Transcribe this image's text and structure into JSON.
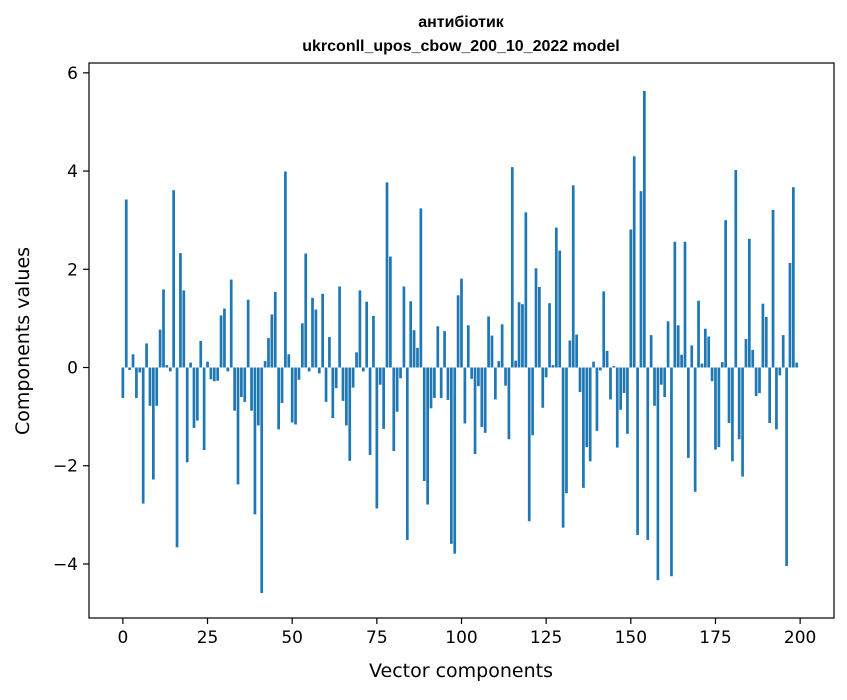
{
  "chart_data": {
    "type": "bar",
    "title": "антибіотик",
    "subtitle": "ukrconll_upos_cbow_200_10_2022 model",
    "xlabel": "Vector components",
    "ylabel": "Components values",
    "xlim": [
      -10,
      210
    ],
    "ylim": [
      -5.1,
      6.2
    ],
    "x_ticks": [
      0,
      25,
      50,
      75,
      100,
      125,
      150,
      175,
      200
    ],
    "x_tick_labels": [
      "0",
      "25",
      "50",
      "75",
      "100",
      "125",
      "150",
      "175",
      "200"
    ],
    "y_ticks": [
      -4,
      -2,
      0,
      2,
      4,
      6
    ],
    "y_tick_labels": [
      "−4",
      "−2",
      "0",
      "2",
      "4",
      "6"
    ],
    "grid": false,
    "bar_color": "#1f77b4",
    "values": [
      -0.62,
      3.42,
      -0.05,
      0.27,
      -0.62,
      -0.1,
      -2.77,
      0.49,
      -0.78,
      -2.28,
      -0.78,
      0.77,
      1.59,
      0.05,
      -0.08,
      3.61,
      -3.66,
      2.33,
      1.57,
      -1.93,
      0.1,
      -1.23,
      -1.08,
      0.54,
      -1.68,
      0.12,
      -0.24,
      -0.28,
      -0.27,
      1.06,
      1.2,
      -0.08,
      1.79,
      -0.88,
      -2.38,
      -0.6,
      -0.7,
      1.38,
      -0.88,
      -2.99,
      -1.18,
      -4.59,
      0.13,
      0.6,
      1.08,
      1.54,
      -1.26,
      -0.72,
      3.99,
      0.27,
      -1.12,
      -1.16,
      -0.25,
      0.9,
      2.32,
      -0.08,
      1.42,
      1.18,
      -0.12,
      1.5,
      -0.7,
      0.62,
      -1.03,
      -0.42,
      1.65,
      -0.68,
      -1.18,
      -1.9,
      -0.41,
      0.31,
      1.57,
      -0.08,
      1.34,
      -1.78,
      1.05,
      -2.87,
      -0.35,
      -1.25,
      3.77,
      2.26,
      -1.7,
      -0.9,
      -0.22,
      1.65,
      -3.51,
      1.35,
      0.76,
      0.4,
      3.24,
      -2.31,
      -2.79,
      -0.83,
      -0.62,
      0.84,
      -0.62,
      0.74,
      -0.66,
      -3.59,
      -3.79,
      1.47,
      1.81,
      -1.14,
      0.86,
      -0.23,
      -1.76,
      -0.38,
      -1.21,
      -1.33,
      1.04,
      0.65,
      -0.65,
      0.13,
      0.88,
      -0.37,
      -1.46,
      4.08,
      0.14,
      1.33,
      1.29,
      3.16,
      -3.13,
      -1.38,
      2.02,
      1.64,
      -0.82,
      -0.2,
      1.31,
      0.05,
      2.85,
      2.38,
      -3.26,
      -2.56,
      0.55,
      3.71,
      0.67,
      -0.5,
      -2.45,
      -1.62,
      -1.91,
      0.12,
      -1.29,
      -0.06,
      1.55,
      0.34,
      -0.65,
      0.03,
      -1.63,
      -0.86,
      -0.52,
      -1.35,
      2.81,
      4.3,
      -3.41,
      3.59,
      5.63,
      -3.51,
      0.66,
      -0.78,
      -4.33,
      -0.35,
      -0.6,
      0.94,
      -4.25,
      2.56,
      0.86,
      0.26,
      2.56,
      -1.84,
      0.45,
      -2.53,
      1.36,
      0.08,
      0.79,
      0.63,
      -0.28,
      -1.67,
      -1.62,
      0.11,
      3.0,
      -1.13,
      -1.91,
      4.02,
      -1.46,
      -2.22,
      0.58,
      2.62,
      0.36,
      -0.58,
      -0.52,
      1.3,
      1.03,
      -1.13,
      3.21,
      -1.26,
      -0.16,
      0.66,
      -4.04,
      2.13,
      3.67,
      0.1
    ]
  }
}
